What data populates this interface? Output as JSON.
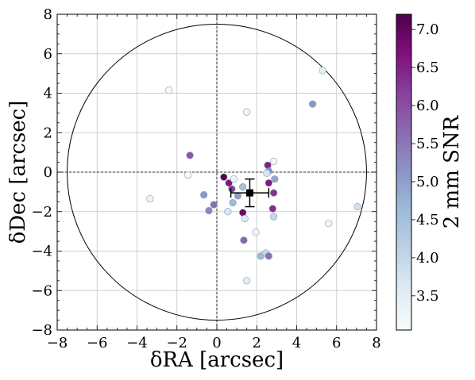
{
  "chart_data": {
    "type": "scatter",
    "xlabel": "δRA [arcsec]",
    "ylabel": "δDec [arcsec]",
    "xlim": [
      -8,
      8
    ],
    "ylim": [
      -8,
      8
    ],
    "xticks": [
      -8,
      -6,
      -4,
      -2,
      0,
      2,
      4,
      6,
      8
    ],
    "yticks": [
      -8,
      -6,
      -4,
      -2,
      0,
      2,
      4,
      6,
      8
    ],
    "xtick_labels": [
      "−8",
      "−6",
      "−4",
      "−2",
      "0",
      "2",
      "4",
      "6",
      "8"
    ],
    "ytick_labels": [
      "−8",
      "−6",
      "−4",
      "−2",
      "0",
      "2",
      "4",
      "6",
      "8"
    ],
    "grid": true,
    "circle_radius": 7.5,
    "reference_lines": {
      "x": 0,
      "y": 0,
      "style": "dashed"
    },
    "mean_offset": {
      "x": 1.65,
      "y": -1.05,
      "xerr": 0.95,
      "yerr": 0.7
    },
    "colorbar": {
      "label": "2 mm SNR",
      "min": 3.05,
      "max": 7.2,
      "ticks": [
        3.5,
        4.0,
        4.5,
        5.0,
        5.5,
        6.0,
        6.5,
        7.0
      ],
      "tick_labels": [
        "3.5",
        "4.0",
        "4.5",
        "5.0",
        "5.5",
        "6.0",
        "6.5",
        "7.0"
      ],
      "colormap": "BuPu",
      "colors": [
        "#f7fcfd",
        "#e0ecf4",
        "#bfd3e6",
        "#9ebcda",
        "#8c96c6",
        "#8c6bb1",
        "#88419d",
        "#810f7c",
        "#4d004b"
      ]
    },
    "points": [
      {
        "x": -2.4,
        "y": 4.15,
        "snr": 3.1
      },
      {
        "x": 5.3,
        "y": 5.15,
        "snr": 3.5
      },
      {
        "x": 4.8,
        "y": 3.45,
        "snr": 5.1
      },
      {
        "x": 1.5,
        "y": 3.05,
        "snr": 3.3
      },
      {
        "x": -1.35,
        "y": 0.85,
        "snr": 5.9
      },
      {
        "x": -1.45,
        "y": -0.15,
        "snr": 3.1
      },
      {
        "x": -3.35,
        "y": -1.35,
        "snr": 3.3
      },
      {
        "x": -0.65,
        "y": -1.15,
        "snr": 5.1
      },
      {
        "x": -0.15,
        "y": -1.65,
        "snr": 5.6
      },
      {
        "x": -0.4,
        "y": -1.95,
        "snr": 5.3
      },
      {
        "x": 0.35,
        "y": -0.25,
        "snr": 7.1
      },
      {
        "x": 0.6,
        "y": -0.55,
        "snr": 6.6
      },
      {
        "x": 0.75,
        "y": -0.85,
        "snr": 6.2
      },
      {
        "x": 0.85,
        "y": -0.35,
        "snr": 3.3
      },
      {
        "x": 0.8,
        "y": -1.55,
        "snr": 4.6
      },
      {
        "x": 1.3,
        "y": -0.75,
        "snr": 4.5
      },
      {
        "x": 1.05,
        "y": -1.2,
        "snr": 5.0
      },
      {
        "x": 0.55,
        "y": -2.0,
        "snr": 3.7
      },
      {
        "x": 1.3,
        "y": -2.05,
        "snr": 6.9
      },
      {
        "x": 1.4,
        "y": -2.35,
        "snr": 3.6
      },
      {
        "x": 1.35,
        "y": -3.45,
        "snr": 5.7
      },
      {
        "x": 1.95,
        "y": -3.05,
        "snr": 3.3
      },
      {
        "x": 2.2,
        "y": -4.25,
        "snr": 4.6
      },
      {
        "x": 2.45,
        "y": -4.1,
        "snr": 4.0
      },
      {
        "x": 2.6,
        "y": -4.25,
        "snr": 5.6
      },
      {
        "x": 1.5,
        "y": -5.5,
        "snr": 3.5
      },
      {
        "x": 2.55,
        "y": 0.35,
        "snr": 6.5
      },
      {
        "x": 2.6,
        "y": 0.05,
        "snr": 5.2
      },
      {
        "x": 2.5,
        "y": -0.05,
        "snr": 3.7
      },
      {
        "x": 2.85,
        "y": 0.55,
        "snr": 3.2
      },
      {
        "x": 2.9,
        "y": -0.35,
        "snr": 4.9
      },
      {
        "x": 2.6,
        "y": -0.55,
        "snr": 6.6
      },
      {
        "x": 2.85,
        "y": -1.05,
        "snr": 6.3
      },
      {
        "x": 2.8,
        "y": -1.85,
        "snr": 6.4
      },
      {
        "x": 2.85,
        "y": -2.25,
        "snr": 4.0
      },
      {
        "x": 5.6,
        "y": -2.6,
        "snr": 3.2
      },
      {
        "x": 7.05,
        "y": -1.75,
        "snr": 3.8
      }
    ]
  }
}
